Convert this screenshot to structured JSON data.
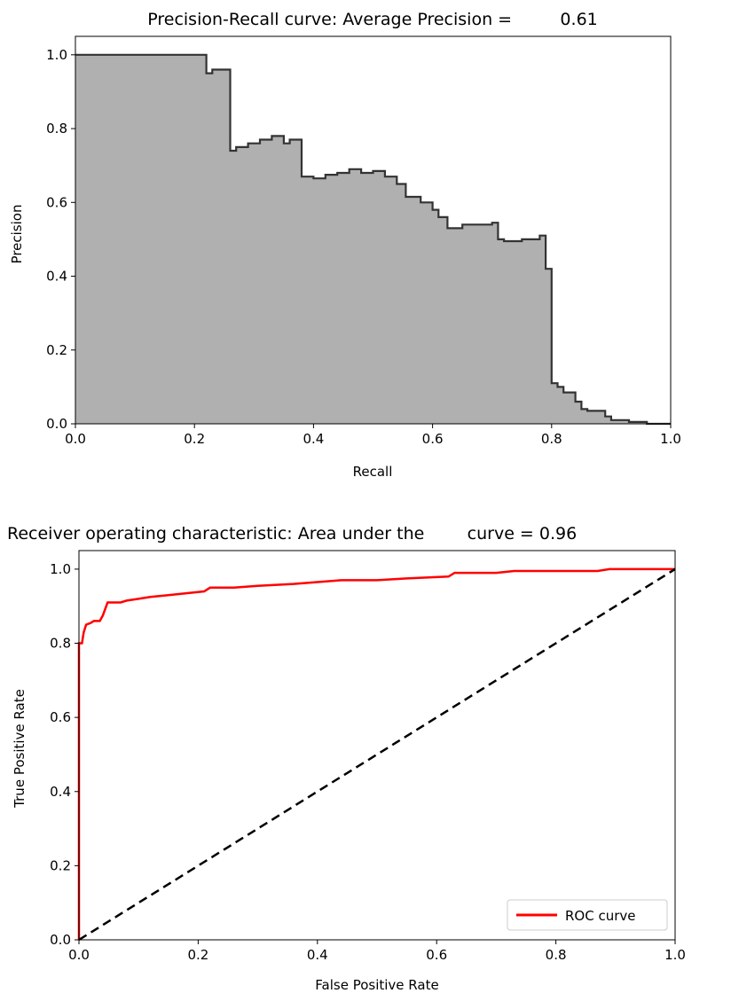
{
  "chart_data": [
    {
      "type": "area",
      "title": "Precision-Recall curve: Average Precision =         0.61",
      "xlabel": "Recall",
      "ylabel": "Precision",
      "xlim": [
        0,
        1
      ],
      "ylim": [
        0,
        1.05
      ],
      "xticks": [
        "0.0",
        "0.2",
        "0.4",
        "0.6",
        "0.8",
        "1.0"
      ],
      "yticks": [
        "0.0",
        "0.2",
        "0.4",
        "0.6",
        "0.8",
        "1.0"
      ],
      "grid": false,
      "colors": {
        "fill": "#b0b0b0",
        "line": "#333333"
      },
      "series": [
        {
          "x": [
            0,
            0.22,
            0.22,
            0.23,
            0.23,
            0.26,
            0.26,
            0.27,
            0.27,
            0.29,
            0.29,
            0.31,
            0.31,
            0.33,
            0.33,
            0.35,
            0.35,
            0.36,
            0.36,
            0.38,
            0.38,
            0.4,
            0.4,
            0.42,
            0.42,
            0.44,
            0.44,
            0.46,
            0.46,
            0.48,
            0.48,
            0.5,
            0.5,
            0.52,
            0.52,
            0.54,
            0.54,
            0.555,
            0.555,
            0.58,
            0.58,
            0.6,
            0.6,
            0.61,
            0.61,
            0.625,
            0.625,
            0.65,
            0.65,
            0.7,
            0.7,
            0.71,
            0.71,
            0.72,
            0.72,
            0.75,
            0.75,
            0.78,
            0.78,
            0.79,
            0.79,
            0.8,
            0.8,
            0.81,
            0.81,
            0.82,
            0.82,
            0.84,
            0.84,
            0.85,
            0.85,
            0.86,
            0.86,
            0.89,
            0.89,
            0.9,
            0.9,
            0.93,
            0.93,
            0.96,
            0.96,
            1.0
          ],
          "y": [
            1.0,
            1.0,
            0.95,
            0.95,
            0.96,
            0.96,
            0.74,
            0.74,
            0.75,
            0.75,
            0.76,
            0.76,
            0.77,
            0.77,
            0.78,
            0.78,
            0.76,
            0.76,
            0.77,
            0.77,
            0.67,
            0.67,
            0.665,
            0.665,
            0.675,
            0.675,
            0.68,
            0.68,
            0.69,
            0.69,
            0.68,
            0.68,
            0.685,
            0.685,
            0.67,
            0.67,
            0.65,
            0.65,
            0.615,
            0.615,
            0.6,
            0.6,
            0.58,
            0.58,
            0.56,
            0.56,
            0.53,
            0.53,
            0.54,
            0.54,
            0.545,
            0.545,
            0.5,
            0.5,
            0.495,
            0.495,
            0.5,
            0.5,
            0.51,
            0.51,
            0.42,
            0.42,
            0.11,
            0.11,
            0.1,
            0.1,
            0.085,
            0.085,
            0.06,
            0.06,
            0.04,
            0.04,
            0.035,
            0.035,
            0.02,
            0.02,
            0.01,
            0.01,
            0.005,
            0.005,
            0.0,
            0.0
          ]
        }
      ]
    },
    {
      "type": "line",
      "title": "Receiver operating characteristic: Area under the        curve = 0.96",
      "xlabel": "False Positive Rate",
      "ylabel": "True Positive Rate",
      "xlim": [
        0,
        1
      ],
      "ylim": [
        0,
        1.05
      ],
      "xticks": [
        "0.0",
        "0.2",
        "0.4",
        "0.6",
        "0.8",
        "1.0"
      ],
      "yticks": [
        "0.0",
        "0.2",
        "0.4",
        "0.6",
        "0.8",
        "1.0"
      ],
      "grid": false,
      "legend_position": "lower-right",
      "series": [
        {
          "name": "ROC curve",
          "color": "#ff0000",
          "x": [
            0,
            0.0,
            0.005,
            0.008,
            0.012,
            0.02,
            0.025,
            0.035,
            0.04,
            0.048,
            0.07,
            0.08,
            0.1,
            0.12,
            0.15,
            0.18,
            0.21,
            0.22,
            0.26,
            0.3,
            0.36,
            0.4,
            0.44,
            0.5,
            0.55,
            0.62,
            0.63,
            0.7,
            0.73,
            0.8,
            0.87,
            0.89,
            0.95,
            1.0
          ],
          "y": [
            0,
            0.8,
            0.8,
            0.83,
            0.85,
            0.855,
            0.86,
            0.86,
            0.875,
            0.91,
            0.91,
            0.915,
            0.92,
            0.925,
            0.93,
            0.935,
            0.94,
            0.95,
            0.95,
            0.955,
            0.96,
            0.965,
            0.97,
            0.97,
            0.975,
            0.98,
            0.99,
            0.99,
            0.995,
            0.995,
            0.995,
            1.0,
            1.0,
            1.0
          ]
        },
        {
          "style": "dashed",
          "color": "#000000",
          "x": [
            0,
            1
          ],
          "y": [
            0,
            1
          ]
        }
      ]
    }
  ]
}
